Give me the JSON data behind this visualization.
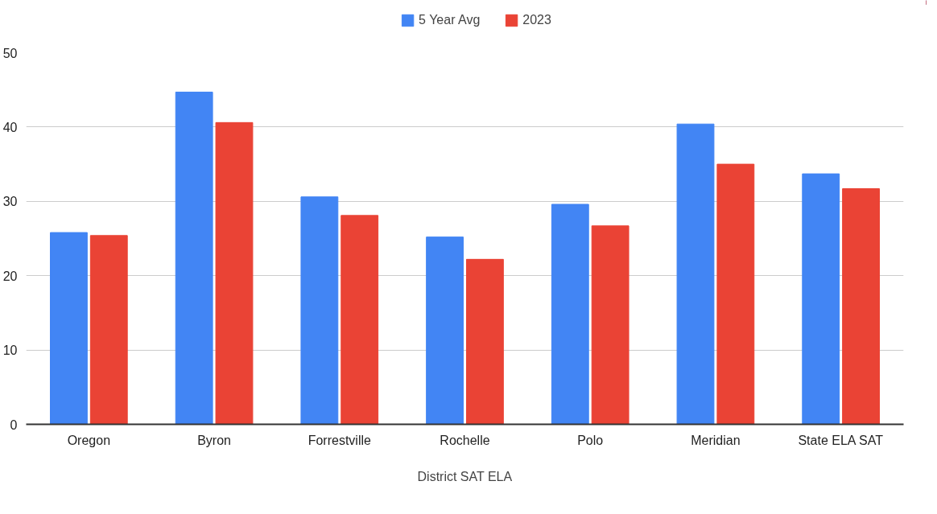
{
  "chart_data": {
    "type": "bar",
    "xlabel": "District SAT ELA",
    "categories": [
      "Oregon",
      "Byron",
      "Forrestville",
      "Rochelle",
      "Polo",
      "Meridian",
      "State ELA SAT"
    ],
    "series": [
      {
        "name": "5 Year Avg",
        "color": "#4285f4",
        "values": [
          25.8,
          44.7,
          30.6,
          25.2,
          29.6,
          40.4,
          33.7
        ]
      },
      {
        "name": "2023",
        "color": "#ea4335",
        "values": [
          25.4,
          40.6,
          28.1,
          22.2,
          26.7,
          35.0,
          31.7
        ]
      }
    ],
    "ylim": [
      0,
      50
    ],
    "yticks": [
      0,
      10,
      20,
      30,
      40,
      50
    ],
    "grid": "y",
    "legend": "top"
  }
}
